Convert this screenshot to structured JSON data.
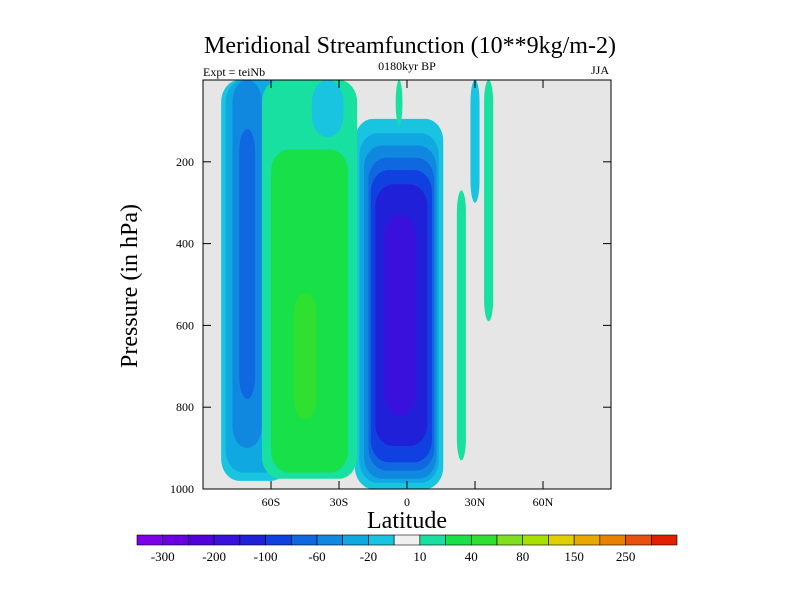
{
  "chart_data": {
    "type": "heatmap",
    "title": "Meridional Streamfunction (10**9kg/m-2)",
    "subtitle_left": "Expt = teiNb",
    "subtitle_center": "0180kyr BP",
    "subtitle_right": "JJA",
    "xlabel": "Latitude",
    "ylabel": "Pressure (in hPa)",
    "xlim": [
      -90,
      90
    ],
    "ylim": [
      1000,
      0
    ],
    "x_ticks": [
      {
        "value": -60,
        "label": "60S"
      },
      {
        "value": -30,
        "label": "30S"
      },
      {
        "value": 0,
        "label": "0"
      },
      {
        "value": 30,
        "label": "30N"
      },
      {
        "value": 60,
        "label": "60N"
      }
    ],
    "y_ticks": [
      {
        "value": 200,
        "label": "200"
      },
      {
        "value": 400,
        "label": "400"
      },
      {
        "value": 600,
        "label": "600"
      },
      {
        "value": 800,
        "label": "800"
      },
      {
        "value": 1000,
        "label": "1000"
      }
    ],
    "missing_color": "#e6e6e6",
    "contour_levels": [
      -300,
      -250,
      -200,
      -150,
      -100,
      -80,
      -60,
      -40,
      -20,
      -10,
      10,
      20,
      40,
      60,
      80,
      100,
      150,
      200,
      250,
      300
    ],
    "colorbar_labels": [
      "-300",
      "-200",
      "-100",
      "-60",
      "-20",
      "10",
      "40",
      "80",
      "150",
      "250"
    ],
    "colors": [
      "#7d00e8",
      "#6a00e0",
      "#5200dc",
      "#3a10dc",
      "#2020d8",
      "#1040e0",
      "#1068e0",
      "#1088e0",
      "#10a8e0",
      "#18c4e0",
      "#f0f0f0",
      "#18e0a0",
      "#18e048",
      "#30e030",
      "#80e020",
      "#a8e000",
      "#e0d000",
      "#e8a800",
      "#e88000",
      "#e85010",
      "#e02000"
    ],
    "regions": [
      {
        "name": "tropical-cell-outer",
        "value": -15,
        "x_range": [
          -23,
          16
        ],
        "p_range": [
          95,
          1000
        ]
      },
      {
        "name": "tropical-cell-ring-1",
        "value": -30,
        "x_range": [
          -21,
          14
        ],
        "p_range": [
          130,
          985
        ]
      },
      {
        "name": "tropical-cell-ring-2",
        "value": -50,
        "x_range": [
          -19,
          13
        ],
        "p_range": [
          160,
          975
        ]
      },
      {
        "name": "tropical-cell-ring-3",
        "value": -70,
        "x_range": [
          -17,
          12
        ],
        "p_range": [
          190,
          955
        ]
      },
      {
        "name": "tropical-cell-ring-4",
        "value": -90,
        "x_range": [
          -16,
          11
        ],
        "p_range": [
          220,
          935
        ]
      },
      {
        "name": "tropical-cell-ring-5",
        "value": -125,
        "x_range": [
          -14,
          9
        ],
        "p_range": [
          255,
          895
        ]
      },
      {
        "name": "tropical-cell-core",
        "value": -175,
        "x_range": [
          -10,
          4
        ],
        "p_range": [
          330,
          820
        ]
      },
      {
        "name": "southern-cell-outer",
        "value": -15,
        "x_range": [
          -82,
          -52
        ],
        "p_range": [
          0,
          980
        ]
      },
      {
        "name": "southern-cell-ring-1",
        "value": -30,
        "x_range": [
          -80,
          -55
        ],
        "p_range": [
          0,
          960
        ]
      },
      {
        "name": "southern-cell-ring-2",
        "value": -50,
        "x_range": [
          -77,
          -64
        ],
        "p_range": [
          0,
          900
        ]
      },
      {
        "name": "southern-cell-core",
        "value": -70,
        "x_range": [
          -74,
          -67
        ],
        "p_range": [
          120,
          780
        ]
      },
      {
        "name": "ferrel-cell-outer",
        "value": 15,
        "x_range": [
          -64,
          -22
        ],
        "p_range": [
          0,
          975
        ]
      },
      {
        "name": "ferrel-cell-ring",
        "value": 30,
        "x_range": [
          -60,
          -26
        ],
        "p_range": [
          170,
          960
        ]
      },
      {
        "name": "ferrel-cell-core",
        "value": 50,
        "x_range": [
          -50,
          -40
        ],
        "p_range": [
          520,
          830
        ]
      },
      {
        "name": "upper-westerly-cell",
        "value": -15,
        "x_range": [
          -42,
          -28
        ],
        "p_range": [
          0,
          140
        ]
      },
      {
        "name": "northern-strip-1",
        "value": 15,
        "x_range": [
          22,
          26
        ],
        "p_range": [
          270,
          930
        ]
      },
      {
        "name": "northern-strip-2",
        "value": 15,
        "x_range": [
          34,
          38
        ],
        "p_range": [
          0,
          590
        ]
      },
      {
        "name": "northern-strip-3",
        "value": -15,
        "x_range": [
          28,
          32
        ],
        "p_range": [
          0,
          300
        ]
      },
      {
        "name": "equatorial-top",
        "value": 15,
        "x_range": [
          -5,
          -2
        ],
        "p_range": [
          0,
          110
        ]
      }
    ]
  }
}
